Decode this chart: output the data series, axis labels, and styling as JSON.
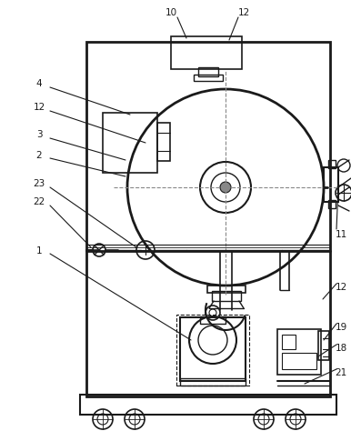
{
  "bg_color": "#ffffff",
  "lc": "#1a1a1a",
  "fs": 7.5
}
